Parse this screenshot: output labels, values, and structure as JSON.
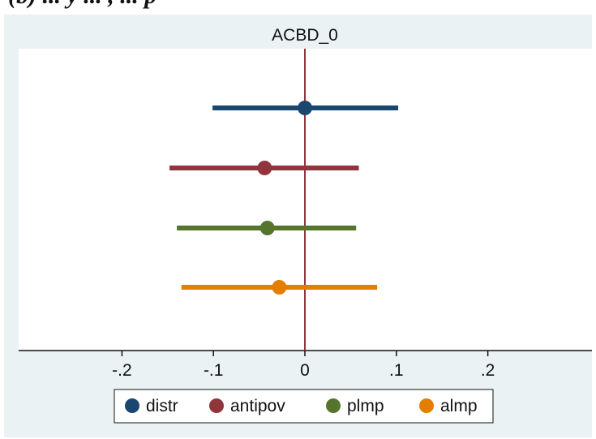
{
  "chart_data": {
    "type": "scatter",
    "title": "ACBD_0",
    "top_caption": "(b) ... y ... , ... p",
    "xlim": [
      -0.3,
      0.3
    ],
    "x_ticks": [
      -0.2,
      -0.1,
      0,
      0.1,
      0.2
    ],
    "x_tick_labels": [
      "-.2",
      "-.1",
      "0",
      ".1",
      ".2"
    ],
    "reference_line_x": 0,
    "grid": false,
    "legend_position": "bottom",
    "series": [
      {
        "name": "distr",
        "estimate": 0.0,
        "ci_low": -0.101,
        "ci_high": 0.102,
        "color": "#1a476f"
      },
      {
        "name": "antipov",
        "estimate": -0.044,
        "ci_low": -0.148,
        "ci_high": 0.059,
        "color": "#90353b"
      },
      {
        "name": "plmp",
        "estimate": -0.041,
        "ci_low": -0.14,
        "ci_high": 0.056,
        "color": "#55752f"
      },
      {
        "name": "almp",
        "estimate": -0.028,
        "ci_low": -0.135,
        "ci_high": 0.079,
        "color": "#e37e00"
      }
    ],
    "colors": {
      "background": "#eaf2f3",
      "plot_area": "#ffffff",
      "reference_line": "#90353b"
    }
  }
}
